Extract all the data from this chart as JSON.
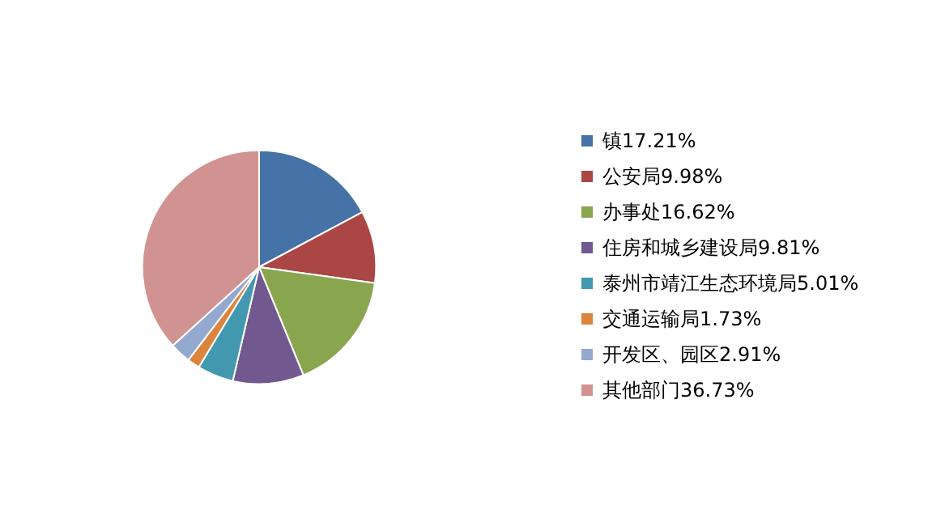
{
  "chart_data": {
    "type": "pie",
    "categories": [
      "镇17.21%",
      "公安局9.98%",
      "办事处16.62%",
      "住房和城乡建设局9.81%",
      "泰州市靖江生态环境局5.01%",
      "交通运输局1.73%",
      "开发区、园区2.91%",
      "其他部门36.73%"
    ],
    "values": [
      17.21,
      9.98,
      16.62,
      9.81,
      5.01,
      1.73,
      2.91,
      36.73
    ],
    "colors": [
      "#4572a7",
      "#aa4643",
      "#89a54e",
      "#71588f",
      "#4198af",
      "#db843d",
      "#93a9cf",
      "#d19392"
    ],
    "legend": "right"
  }
}
